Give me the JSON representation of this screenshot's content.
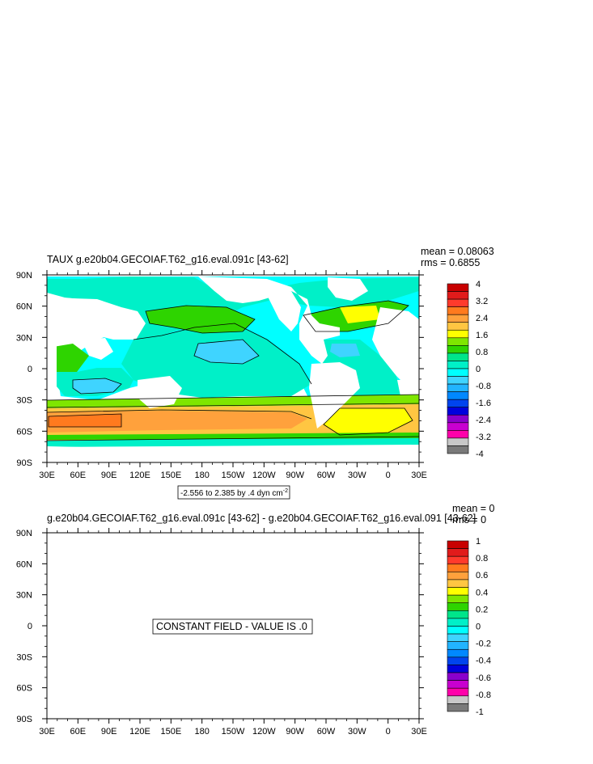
{
  "chart_data": [
    {
      "type": "heatmap",
      "title": "TAUX g.e20b04.GECOIAF.T62_g16.eval.091c [43-62]",
      "stats": {
        "mean": "mean = 0.08063",
        "rms": "rms = 0.6855"
      },
      "x_ticks": [
        "30E",
        "60E",
        "90E",
        "120E",
        "150E",
        "180",
        "150W",
        "120W",
        "90W",
        "60W",
        "30W",
        "0",
        "30E"
      ],
      "y_ticks": [
        "90N",
        "60N",
        "30N",
        "0",
        "30S",
        "60S",
        "90S"
      ],
      "colorbar_labels": [
        "4",
        "3.2",
        "2.4",
        "1.6",
        "0.8",
        "0",
        "-0.8",
        "-1.6",
        "-2.4",
        "-3.2",
        "-4"
      ],
      "colorbar_colors": [
        "#c80000",
        "#e11b1b",
        "#ff3a2c",
        "#ff7a1e",
        "#ffa13c",
        "#ffc642",
        "#ffff00",
        "#7fe600",
        "#2ed400",
        "#00e58a",
        "#00f0c8",
        "#00ffff",
        "#3fd4ff",
        "#22b4ff",
        "#0088ff",
        "#0044ee",
        "#0000dd",
        "#8a00cc",
        "#c800d0",
        "#ff00aa",
        "#c8c8c8",
        "#7a7a7a"
      ],
      "info_box": "-2.556 to 2.385 by .4 dyn cm",
      "info_box_exp": "-2",
      "range": {
        "min": -2.556,
        "max": 2.385,
        "interval": 0.4,
        "units": "dyn cm-2"
      }
    },
    {
      "type": "heatmap",
      "title": "g.e20b04.GECOIAF.T62_g16.eval.091c [43-62] - g.e20b04.GECOIAF.T62_g16.eval.091 [43-62]",
      "stats": {
        "mean": "mean = 0",
        "rms": "rms = 0"
      },
      "x_ticks": [
        "30E",
        "60E",
        "90E",
        "120E",
        "150E",
        "180",
        "150W",
        "120W",
        "90W",
        "60W",
        "30W",
        "0",
        "30E"
      ],
      "y_ticks": [
        "90N",
        "60N",
        "30N",
        "0",
        "30S",
        "60S",
        "90S"
      ],
      "colorbar_labels": [
        "1",
        "0.8",
        "0.6",
        "0.4",
        "0.2",
        "0",
        "-0.2",
        "-0.4",
        "-0.6",
        "-0.8",
        "-1"
      ],
      "colorbar_colors": [
        "#c80000",
        "#e11b1b",
        "#ff3a2c",
        "#ff7a1e",
        "#ffa13c",
        "#ffc642",
        "#ffff00",
        "#7fe600",
        "#2ed400",
        "#00e58a",
        "#00f0c8",
        "#00ffff",
        "#3fd4ff",
        "#22b4ff",
        "#0088ff",
        "#0044ee",
        "#0000dd",
        "#8a00cc",
        "#c800d0",
        "#ff00aa",
        "#c8c8c8",
        "#7a7a7a"
      ],
      "message": "CONSTANT FIELD - VALUE IS .0",
      "constant_value": 0
    }
  ]
}
